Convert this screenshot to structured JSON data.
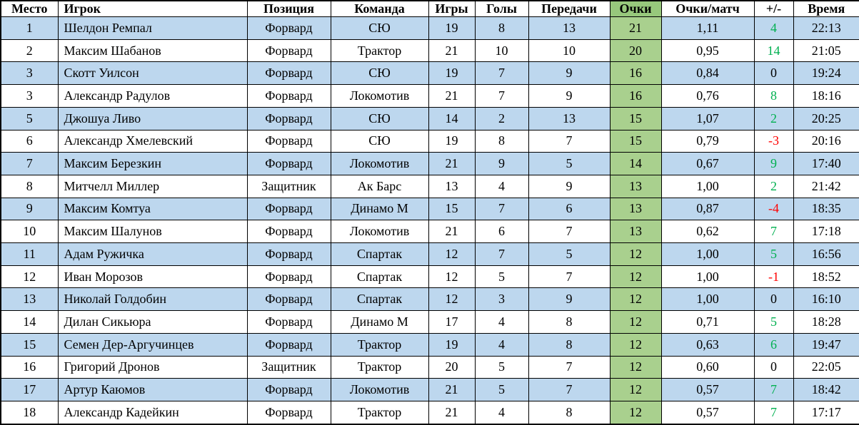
{
  "chart_data": {
    "type": "table",
    "columns": [
      {
        "key": "place",
        "label": "Место"
      },
      {
        "key": "player",
        "label": "Игрок"
      },
      {
        "key": "position",
        "label": "Позиция"
      },
      {
        "key": "team",
        "label": "Команда"
      },
      {
        "key": "games",
        "label": "Игры"
      },
      {
        "key": "goals",
        "label": "Голы"
      },
      {
        "key": "assists",
        "label": "Передачи"
      },
      {
        "key": "points",
        "label": "Очки"
      },
      {
        "key": "ppg",
        "label": "Очки/матч"
      },
      {
        "key": "plusminus",
        "label": "+/-"
      },
      {
        "key": "time",
        "label": "Время"
      }
    ],
    "rows": [
      {
        "place": "1",
        "player": "Шелдон Ремпал",
        "position": "Форвард",
        "team": "СЮ",
        "games": "19",
        "goals": "8",
        "assists": "13",
        "points": "21",
        "ppg": "1,11",
        "plusminus": "4",
        "pm_class": "pm-pos",
        "time": "22:13"
      },
      {
        "place": "2",
        "player": "Максим Шабанов",
        "position": "Форвард",
        "team": "Трактор",
        "games": "21",
        "goals": "10",
        "assists": "10",
        "points": "20",
        "ppg": "0,95",
        "plusminus": "14",
        "pm_class": "pm-pos",
        "time": "21:05"
      },
      {
        "place": "3",
        "player": "Скотт Уилсон",
        "position": "Форвард",
        "team": "СЮ",
        "games": "19",
        "goals": "7",
        "assists": "9",
        "points": "16",
        "ppg": "0,84",
        "plusminus": "0",
        "pm_class": "pm-zero",
        "time": "19:24"
      },
      {
        "place": "3",
        "player": "Александр Радулов",
        "position": "Форвард",
        "team": "Локомотив",
        "games": "21",
        "goals": "7",
        "assists": "9",
        "points": "16",
        "ppg": "0,76",
        "plusminus": "8",
        "pm_class": "pm-pos",
        "time": "18:16"
      },
      {
        "place": "5",
        "player": "Джошуа Ливо",
        "position": "Форвард",
        "team": "СЮ",
        "games": "14",
        "goals": "2",
        "assists": "13",
        "points": "15",
        "ppg": "1,07",
        "plusminus": "2",
        "pm_class": "pm-pos",
        "time": "20:25"
      },
      {
        "place": "6",
        "player": "Александр Хмелевский",
        "position": "Форвард",
        "team": "СЮ",
        "games": "19",
        "goals": "8",
        "assists": "7",
        "points": "15",
        "ppg": "0,79",
        "plusminus": "-3",
        "pm_class": "pm-neg",
        "time": "20:16"
      },
      {
        "place": "7",
        "player": "Максим Березкин",
        "position": "Форвард",
        "team": "Локомотив",
        "games": "21",
        "goals": "9",
        "assists": "5",
        "points": "14",
        "ppg": "0,67",
        "plusminus": "9",
        "pm_class": "pm-pos",
        "time": "17:40"
      },
      {
        "place": "8",
        "player": "Митчелл Миллер",
        "position": "Защитник",
        "team": "Ак Барс",
        "games": "13",
        "goals": "4",
        "assists": "9",
        "points": "13",
        "ppg": "1,00",
        "plusminus": "2",
        "pm_class": "pm-pos",
        "time": "21:42"
      },
      {
        "place": "9",
        "player": "Максим Комтуа",
        "position": "Форвард",
        "team": "Динамо М",
        "games": "15",
        "goals": "7",
        "assists": "6",
        "points": "13",
        "ppg": "0,87",
        "plusminus": "-4",
        "pm_class": "pm-neg",
        "time": "18:35"
      },
      {
        "place": "10",
        "player": "Максим Шалунов",
        "position": "Форвард",
        "team": "Локомотив",
        "games": "21",
        "goals": "6",
        "assists": "7",
        "points": "13",
        "ppg": "0,62",
        "plusminus": "7",
        "pm_class": "pm-pos",
        "time": "17:18"
      },
      {
        "place": "11",
        "player": "Адам Ружичка",
        "position": "Форвард",
        "team": "Спартак",
        "games": "12",
        "goals": "7",
        "assists": "5",
        "points": "12",
        "ppg": "1,00",
        "plusminus": "5",
        "pm_class": "pm-pos",
        "time": "16:56"
      },
      {
        "place": "12",
        "player": "Иван Морозов",
        "position": "Форвард",
        "team": "Спартак",
        "games": "12",
        "goals": "5",
        "assists": "7",
        "points": "12",
        "ppg": "1,00",
        "plusminus": "-1",
        "pm_class": "pm-neg",
        "time": "18:52"
      },
      {
        "place": "13",
        "player": "Николай Голдобин",
        "position": "Форвард",
        "team": "Спартак",
        "games": "12",
        "goals": "3",
        "assists": "9",
        "points": "12",
        "ppg": "1,00",
        "plusminus": "0",
        "pm_class": "pm-zero",
        "time": "16:10"
      },
      {
        "place": "14",
        "player": "Дилан Сикьюра",
        "position": "Форвард",
        "team": "Динамо М",
        "games": "17",
        "goals": "4",
        "assists": "8",
        "points": "12",
        "ppg": "0,71",
        "plusminus": "5",
        "pm_class": "pm-pos",
        "time": "18:28"
      },
      {
        "place": "15",
        "player": "Семен Дер-Аргучинцев",
        "position": "Форвард",
        "team": "Трактор",
        "games": "19",
        "goals": "4",
        "assists": "8",
        "points": "12",
        "ppg": "0,63",
        "plusminus": "6",
        "pm_class": "pm-pos",
        "time": "19:47"
      },
      {
        "place": "16",
        "player": "Григорий Дронов",
        "position": "Защитник",
        "team": "Трактор",
        "games": "20",
        "goals": "5",
        "assists": "7",
        "points": "12",
        "ppg": "0,60",
        "plusminus": "0",
        "pm_class": "pm-zero",
        "time": "22:05"
      },
      {
        "place": "17",
        "player": "Артур Каюмов",
        "position": "Форвард",
        "team": "Локомотив",
        "games": "21",
        "goals": "5",
        "assists": "7",
        "points": "12",
        "ppg": "0,57",
        "plusminus": "7",
        "pm_class": "pm-pos",
        "time": "18:42"
      },
      {
        "place": "18",
        "player": "Александр Кадейкин",
        "position": "Форвард",
        "team": "Трактор",
        "games": "21",
        "goals": "4",
        "assists": "8",
        "points": "12",
        "ppg": "0,57",
        "plusminus": "7",
        "pm_class": "pm-pos",
        "time": "17:17"
      }
    ]
  },
  "colors": {
    "row_alt": "#BDD7EE",
    "points_header": "#97C87C",
    "points_cell": "#A9D08E",
    "positive": "#00B050",
    "negative": "#FF0000",
    "border": "#000000"
  }
}
